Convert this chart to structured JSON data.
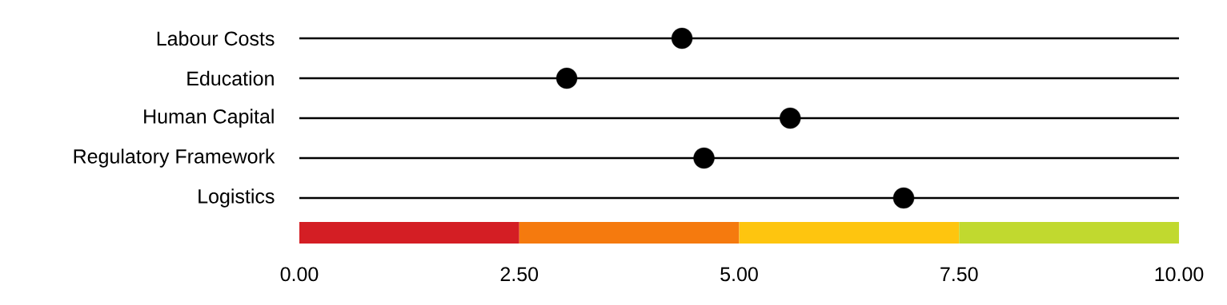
{
  "chart_data": {
    "type": "scatter",
    "orientation": "horizontal",
    "categories": [
      "Labour Costs",
      "Education",
      "Human Capital",
      "Regulatory Framework",
      "Logistics"
    ],
    "values": [
      4.35,
      3.04,
      5.58,
      4.6,
      6.87
    ],
    "color": "#000000",
    "marker": "circle",
    "grid": "y",
    "xlim": [
      0,
      10
    ],
    "xticks": [
      {
        "value": 0,
        "label": "0.00"
      },
      {
        "value": 2.5,
        "label": "2.50"
      },
      {
        "value": 5,
        "label": "5.00"
      },
      {
        "value": 7.5,
        "label": "7.50"
      },
      {
        "value": 10,
        "label": "10.00"
      }
    ],
    "bands": [
      {
        "axis": "x",
        "from": 0,
        "to": 2.5,
        "color": "#d41e24"
      },
      {
        "axis": "x",
        "from": 2.5,
        "to": 5,
        "color": "#f57a0e"
      },
      {
        "axis": "x",
        "from": 5,
        "to": 7.5,
        "color": "#fec50f"
      },
      {
        "axis": "x",
        "from": 7.5,
        "to": 10,
        "color": "#c1d92f"
      }
    ]
  }
}
